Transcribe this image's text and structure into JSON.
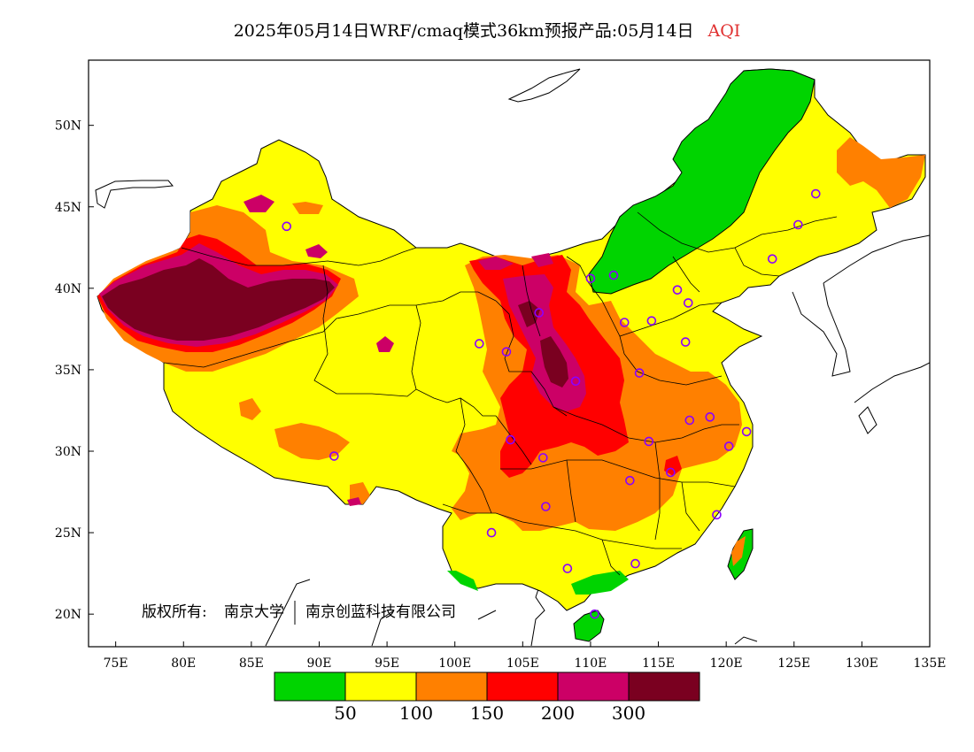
{
  "header": {
    "title": "2025年05月14日WRF/cmaq模式36km预报产品:05月14日",
    "variable": "AQI"
  },
  "axes": {
    "lon_ticks": [
      "75E",
      "80E",
      "85E",
      "90E",
      "95E",
      "100E",
      "105E",
      "110E",
      "115E",
      "120E",
      "125E",
      "130E",
      "135E"
    ],
    "lat_ticks": [
      "20N",
      "25N",
      "30N",
      "35N",
      "40N",
      "45N",
      "50N"
    ],
    "lon_range": [
      73,
      135
    ],
    "lat_range": [
      18,
      54
    ]
  },
  "copyright": {
    "prefix": "版权所有:",
    "org1": "南京大学",
    "org2": "南京创蓝科技有限公司"
  },
  "legend": {
    "colors": [
      "#00d400",
      "#ffff00",
      "#ff8000",
      "#ff0000",
      "#cc0066",
      "#7a0020"
    ],
    "labels": [
      "50",
      "100",
      "150",
      "200",
      "300"
    ]
  },
  "colors": {
    "good": "#00d400",
    "moderate": "#ffff00",
    "sensitive": "#ff8000",
    "unhealthy": "#ff0000",
    "very_unhealthy": "#cc0066",
    "hazardous": "#7a0020",
    "station_marker": "#8b00ff"
  },
  "stations_lonlat": [
    [
      87.6,
      43.8
    ],
    [
      91.1,
      29.7
    ],
    [
      101.8,
      36.6
    ],
    [
      103.8,
      36.1
    ],
    [
      104.1,
      30.7
    ],
    [
      106.5,
      29.6
    ],
    [
      106.7,
      26.6
    ],
    [
      102.7,
      25.0
    ],
    [
      108.3,
      22.8
    ],
    [
      110.3,
      20.0
    ],
    [
      106.2,
      38.5
    ],
    [
      108.9,
      34.3
    ],
    [
      111.7,
      40.8
    ],
    [
      112.5,
      37.9
    ],
    [
      114.5,
      38.0
    ],
    [
      116.4,
      39.9
    ],
    [
      117.2,
      39.1
    ],
    [
      117.0,
      36.7
    ],
    [
      113.6,
      34.8
    ],
    [
      114.3,
      30.6
    ],
    [
      112.9,
      28.2
    ],
    [
      115.9,
      28.7
    ],
    [
      117.3,
      31.9
    ],
    [
      118.8,
      32.1
    ],
    [
      120.2,
      30.3
    ],
    [
      121.5,
      31.2
    ],
    [
      119.3,
      26.1
    ],
    [
      113.3,
      23.1
    ],
    [
      123.4,
      41.8
    ],
    [
      125.3,
      43.9
    ],
    [
      126.6,
      45.8
    ],
    [
      110.0,
      40.6
    ]
  ]
}
